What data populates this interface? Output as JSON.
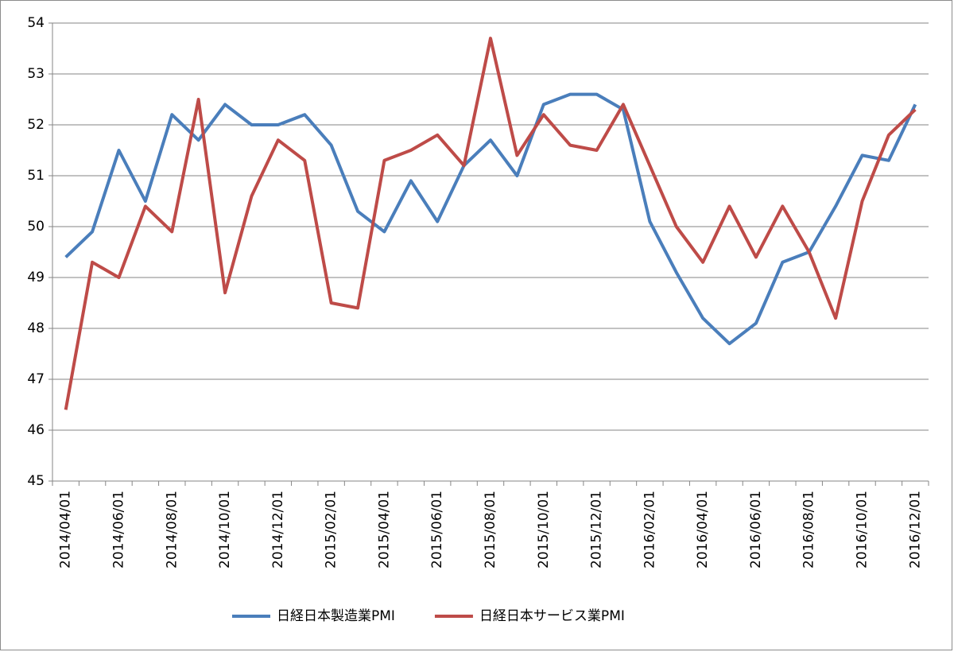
{
  "chart_data": {
    "type": "line",
    "categories": [
      "2014/04/01",
      null,
      "2014/06/01",
      null,
      "2014/08/01",
      null,
      "2014/10/01",
      null,
      "2014/12/01",
      null,
      "2015/02/01",
      null,
      "2015/04/01",
      null,
      "2015/06/01",
      null,
      "2015/08/01",
      null,
      "2015/10/01",
      null,
      "2015/12/01",
      null,
      "2016/02/01",
      null,
      "2016/04/01",
      null,
      "2016/06/01",
      null,
      "2016/08/01",
      null,
      "2016/10/01",
      null,
      "2016/12/01"
    ],
    "series": [
      {
        "name": "日経日本製造業PMI",
        "color": "#4a7ebb",
        "values": [
          49.4,
          49.9,
          51.5,
          50.5,
          52.2,
          51.7,
          52.4,
          52.0,
          52.0,
          52.2,
          51.6,
          50.3,
          49.9,
          50.9,
          50.1,
          51.2,
          51.7,
          51.0,
          52.4,
          52.6,
          52.6,
          52.3,
          50.1,
          49.1,
          48.2,
          47.7,
          48.1,
          49.3,
          49.5,
          50.4,
          51.4,
          51.3,
          52.4
        ]
      },
      {
        "name": "日経日本サービス業PMI",
        "color": "#be4b48",
        "values": [
          46.4,
          49.3,
          49.0,
          50.4,
          49.9,
          52.5,
          48.7,
          50.6,
          51.7,
          51.3,
          48.5,
          48.4,
          51.3,
          51.5,
          51.8,
          51.2,
          53.7,
          51.4,
          52.2,
          51.6,
          51.5,
          52.4,
          51.2,
          50.0,
          49.3,
          50.4,
          49.4,
          50.4,
          49.5,
          48.2,
          50.5,
          51.8,
          52.3
        ]
      }
    ],
    "ylim": [
      45,
      54
    ],
    "yticks": [
      45,
      46,
      47,
      48,
      49,
      50,
      51,
      52,
      53,
      54
    ],
    "grid": true,
    "legend": "bottom"
  }
}
